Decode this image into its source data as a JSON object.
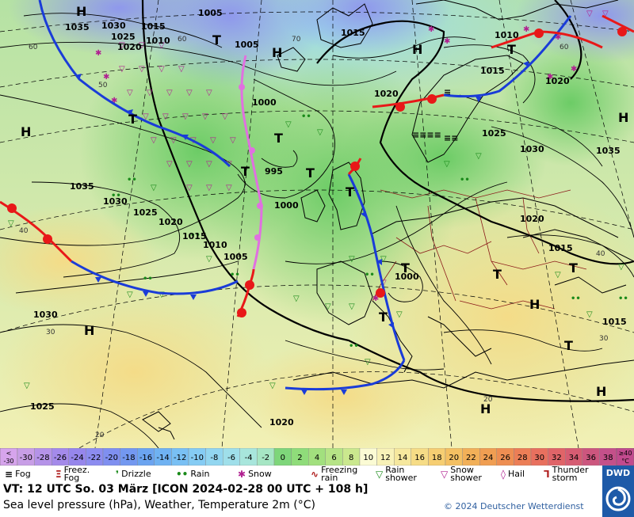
{
  "map": {
    "high_pressure_label": "H",
    "low_pressure_label": "T",
    "isobar_labels": [
      {
        "value": "1035"
      },
      {
        "value": "1030"
      },
      {
        "value": "1025"
      },
      {
        "value": "1020"
      },
      {
        "value": "1015"
      },
      {
        "value": "1010"
      },
      {
        "value": "1005"
      },
      {
        "value": "1000"
      },
      {
        "value": "995"
      },
      {
        "value": "1035"
      },
      {
        "value": "1030"
      },
      {
        "value": "1025"
      },
      {
        "value": "1020"
      },
      {
        "value": "1015"
      },
      {
        "value": "1010"
      },
      {
        "value": "1005"
      },
      {
        "value": "1030"
      },
      {
        "value": "1025"
      },
      {
        "value": "1020"
      },
      {
        "value": "1000"
      },
      {
        "value": "1000"
      },
      {
        "value": "1005"
      },
      {
        "value": "1015"
      },
      {
        "value": "1020"
      },
      {
        "value": "1010"
      },
      {
        "value": "1015"
      },
      {
        "value": "1020"
      },
      {
        "value": "1025"
      },
      {
        "value": "1030"
      },
      {
        "value": "1035"
      },
      {
        "value": "1015"
      },
      {
        "value": "1015"
      },
      {
        "value": "1020"
      }
    ],
    "grid_labels": [
      "60",
      "50",
      "40",
      "30",
      "20",
      "60",
      "70",
      "60",
      "40",
      "30",
      "20"
    ]
  },
  "colorbar": {
    "unit": "°C",
    "low_end": "<\n-30",
    "high_end": "≥40\n°C",
    "steps": [
      {
        "label": "-30",
        "color": "#c89ee6"
      },
      {
        "label": "-28",
        "color": "#b593e8"
      },
      {
        "label": "-26",
        "color": "#a48aea"
      },
      {
        "label": "-24",
        "color": "#9686ec"
      },
      {
        "label": "-22",
        "color": "#8c8cf0"
      },
      {
        "label": "-20",
        "color": "#7f8ff0"
      },
      {
        "label": "-18",
        "color": "#7398f0"
      },
      {
        "label": "-16",
        "color": "#6ba4f0"
      },
      {
        "label": "-14",
        "color": "#6fb2f2"
      },
      {
        "label": "-12",
        "color": "#79c0f4"
      },
      {
        "label": "-10",
        "color": "#85ccf4"
      },
      {
        "label": "-8",
        "color": "#92d6f0"
      },
      {
        "label": "-6",
        "color": "#9fdfea"
      },
      {
        "label": "-4",
        "color": "#a8e6dc"
      },
      {
        "label": "-2",
        "color": "#a6e6c4"
      },
      {
        "label": "0",
        "color": "#7ed67a"
      },
      {
        "label": "2",
        "color": "#8fdc7a"
      },
      {
        "label": "4",
        "color": "#a2e07e"
      },
      {
        "label": "6",
        "color": "#b6e486"
      },
      {
        "label": "8",
        "color": "#cae88e"
      },
      {
        "label": "10",
        "color": "#fbfbd4"
      },
      {
        "label": "12",
        "color": "#f8f2b8"
      },
      {
        "label": "14",
        "color": "#f6e89e"
      },
      {
        "label": "16",
        "color": "#f6dc86"
      },
      {
        "label": "18",
        "color": "#f6ce72"
      },
      {
        "label": "20",
        "color": "#f4c062"
      },
      {
        "label": "22",
        "color": "#f2b058"
      },
      {
        "label": "24",
        "color": "#f09e52"
      },
      {
        "label": "26",
        "color": "#ee8e52"
      },
      {
        "label": "28",
        "color": "#ec7e56"
      },
      {
        "label": "30",
        "color": "#e8705e"
      },
      {
        "label": "32",
        "color": "#e06468"
      },
      {
        "label": "34",
        "color": "#d65c72"
      },
      {
        "label": "36",
        "color": "#cc567e"
      },
      {
        "label": "38",
        "color": "#c4508a"
      }
    ]
  },
  "legend": [
    {
      "label": "Fog",
      "icon": "fog-icon",
      "symbol": "≡",
      "color": "#000000"
    },
    {
      "label": "Freez.\nFog",
      "icon": "freezing-fog-icon",
      "symbol": "Ξ",
      "color": "#b02020"
    },
    {
      "label": "Drizzle",
      "icon": "drizzle-icon",
      "symbol": "❜",
      "color": "#1a8a1a"
    },
    {
      "label": "Rain",
      "icon": "rain-icon",
      "symbol": "••",
      "color": "#1a8a1a"
    },
    {
      "label": "Snow",
      "icon": "snow-icon",
      "symbol": "✱",
      "color": "#b02090"
    },
    {
      "label": "Freezing\nrain",
      "icon": "freezing-rain-icon",
      "symbol": "∿",
      "color": "#b02020"
    },
    {
      "label": "Rain\nshower",
      "icon": "rain-shower-icon",
      "symbol": "▽",
      "color": "#1a8a1a"
    },
    {
      "label": "Snow\nshower",
      "icon": "snow-shower-icon",
      "symbol": "▽",
      "color": "#b02090"
    },
    {
      "label": "Hail",
      "icon": "hail-icon",
      "symbol": "◊",
      "color": "#b02090"
    },
    {
      "label": "Thunder\nstorm",
      "icon": "thunderstorm-icon",
      "symbol": "Ꞁ",
      "color": "#b02020"
    }
  ],
  "footer": {
    "valid_time": "VT: 12 UTC So.  03 März [ICON 2024-02-28  00 UTC + 108 h]",
    "description": "Sea level pressure (hPa), Weather, Temperature 2m (°C)",
    "copyright": "© 2024 Deutscher Wetterdienst",
    "logo_text": "DWD"
  },
  "colors": {
    "cold_front": "#1a3cd8",
    "warm_front": "#e81818",
    "occlusion": "#e070e0",
    "isobar": "#000000",
    "border": "#8b1a1a"
  }
}
